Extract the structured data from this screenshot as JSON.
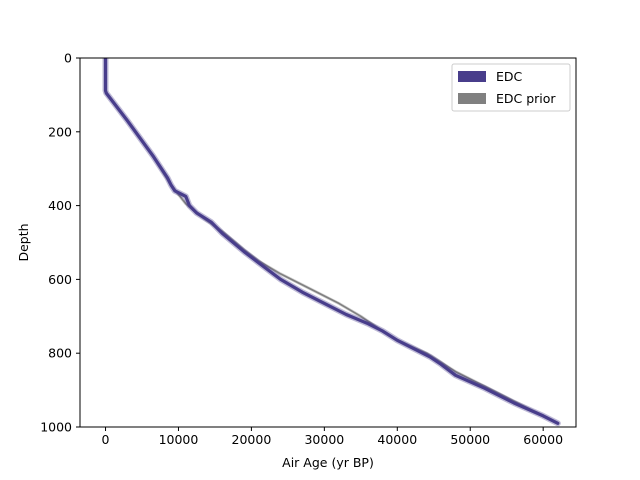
{
  "chart_data": {
    "type": "line",
    "title": "",
    "xlabel": "Air Age (yr BP)",
    "ylabel": "Depth",
    "xlim": [
      -3500,
      64500
    ],
    "ylim": [
      1000,
      0
    ],
    "y_inverted": true,
    "grid": false,
    "legend_placement": "top-right",
    "x_ticks": [
      0,
      10000,
      20000,
      30000,
      40000,
      50000,
      60000
    ],
    "x_tick_labels": [
      "0",
      "10000",
      "20000",
      "30000",
      "40000",
      "50000",
      "60000"
    ],
    "y_ticks": [
      0,
      200,
      400,
      600,
      800,
      1000
    ],
    "y_tick_labels": [
      "0",
      "200",
      "400",
      "600",
      "800",
      "1000"
    ],
    "series": [
      {
        "name": "EDC prior",
        "color": "#808080",
        "band": true,
        "x": [
          0,
          0,
          100,
          3000,
          6500,
          9000,
          11000,
          13500,
          16000,
          19000,
          21000,
          24000,
          28000,
          32000,
          35000,
          38000,
          40000,
          44000,
          48000,
          52000,
          56000,
          60000,
          62000
        ],
        "y": [
          0,
          88,
          95,
          170,
          265,
          345,
          395,
          435,
          470,
          520,
          550,
          585,
          625,
          665,
          700,
          740,
          765,
          800,
          850,
          890,
          930,
          970,
          990
        ]
      },
      {
        "name": "EDC",
        "color": "#483d8b",
        "band": true,
        "x": [
          0,
          0,
          100,
          3000,
          6500,
          8500,
          9000,
          9500,
          11000,
          11500,
          12500,
          14500,
          16000,
          19000,
          21000,
          24000,
          27000,
          30000,
          33000,
          36000,
          38000,
          40000,
          42000,
          44500,
          46000,
          48000,
          52000,
          56000,
          60000,
          62000
        ],
        "y": [
          0,
          88,
          95,
          170,
          265,
          325,
          345,
          360,
          375,
          400,
          420,
          445,
          475,
          525,
          555,
          600,
          635,
          665,
          695,
          720,
          740,
          765,
          785,
          810,
          830,
          860,
          895,
          935,
          970,
          990
        ]
      }
    ]
  }
}
